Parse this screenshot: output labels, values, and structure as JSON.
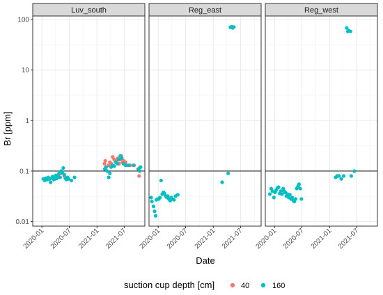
{
  "chart_data": {
    "type": "scatter",
    "ylabel": "Br [ppm]",
    "xlabel": "Date",
    "y_scale": "log10",
    "ylim": [
      0.008,
      140
    ],
    "y_ticks": [
      {
        "value": 0.01,
        "label": "0.01"
      },
      {
        "value": 0.1,
        "label": "0.1"
      },
      {
        "value": 1,
        "label": "1"
      },
      {
        "value": 10,
        "label": "10"
      },
      {
        "value": 100,
        "label": "100"
      }
    ],
    "xlim": [
      "2019-11-01",
      "2021-11-15"
    ],
    "x_ticks": [
      {
        "value": "2020-01-01",
        "label": "2020-01"
      },
      {
        "value": "2020-07-01",
        "label": "2020-07"
      },
      {
        "value": "2021-01-01",
        "label": "2021-01"
      },
      {
        "value": "2021-07-01",
        "label": "2021-07"
      }
    ],
    "reference_line_y": 0.1,
    "grid": true,
    "legend": {
      "title": "suction cup depth [cm]",
      "position": "bottom",
      "entries": [
        {
          "label": "40",
          "color": "#F8766D"
        },
        {
          "label": "160",
          "color": "#00BFC4"
        }
      ]
    },
    "colors": {
      "40": "#F8766D",
      "160": "#00BFC4"
    },
    "panels": [
      {
        "title": "Luv_south",
        "series": [
          {
            "depth": "40",
            "points": [
              [
                "2020-04-05",
                0.075
              ],
              [
                "2020-04-20",
                0.085
              ],
              [
                "2020-05-10",
                0.09
              ],
              [
                "2020-05-28",
                0.08
              ],
              [
                "2021-02-20",
                0.14
              ],
              [
                "2021-02-25",
                0.16
              ],
              [
                "2021-03-05",
                0.12
              ],
              [
                "2021-03-18",
                0.13
              ],
              [
                "2021-03-28",
                0.15
              ],
              [
                "2021-04-05",
                0.14
              ],
              [
                "2021-04-15",
                0.19
              ],
              [
                "2021-04-25",
                0.17
              ],
              [
                "2021-05-05",
                0.15
              ],
              [
                "2021-05-12",
                0.16
              ],
              [
                "2021-05-20",
                0.18
              ],
              [
                "2021-05-28",
                0.14
              ],
              [
                "2021-06-05",
                0.17
              ],
              [
                "2021-06-12",
                0.2
              ],
              [
                "2021-06-20",
                0.15
              ],
              [
                "2021-06-28",
                0.16
              ],
              [
                "2021-07-10",
                0.15
              ],
              [
                "2021-07-25",
                0.13
              ],
              [
                "2021-08-10",
                0.13
              ],
              [
                "2021-09-05",
                0.13
              ],
              [
                "2021-10-01",
                0.11
              ],
              [
                "2021-10-08",
                0.08
              ],
              [
                "2021-10-15",
                0.12
              ]
            ]
          },
          {
            "depth": "160",
            "points": [
              [
                "2020-01-10",
                0.07
              ],
              [
                "2020-01-20",
                0.065
              ],
              [
                "2020-01-28",
                0.072
              ],
              [
                "2020-02-05",
                0.068
              ],
              [
                "2020-02-12",
                0.075
              ],
              [
                "2020-02-20",
                0.07
              ],
              [
                "2020-02-28",
                0.06
              ],
              [
                "2020-03-05",
                0.073
              ],
              [
                "2020-03-12",
                0.078
              ],
              [
                "2020-03-20",
                0.068
              ],
              [
                "2020-03-28",
                0.07
              ],
              [
                "2020-04-03",
                0.082
              ],
              [
                "2020-04-10",
                0.072
              ],
              [
                "2020-04-17",
                0.078
              ],
              [
                "2020-04-24",
                0.09
              ],
              [
                "2020-05-01",
                0.075
              ],
              [
                "2020-05-08",
                0.1
              ],
              [
                "2020-05-15",
                0.095
              ],
              [
                "2020-05-22",
                0.115
              ],
              [
                "2020-05-29",
                0.085
              ],
              [
                "2020-06-05",
                0.072
              ],
              [
                "2020-06-12",
                0.068
              ],
              [
                "2020-06-19",
                0.075
              ],
              [
                "2020-06-26",
                0.07
              ],
              [
                "2020-07-15",
                0.065
              ],
              [
                "2020-08-05",
                0.075
              ],
              [
                "2021-02-22",
                0.11
              ],
              [
                "2021-03-01",
                0.12
              ],
              [
                "2021-03-10",
                0.1
              ],
              [
                "2021-03-20",
                0.075
              ],
              [
                "2021-03-28",
                0.09
              ],
              [
                "2021-04-05",
                0.12
              ],
              [
                "2021-04-15",
                0.13
              ],
              [
                "2021-04-25",
                0.125
              ],
              [
                "2021-05-05",
                0.15
              ],
              [
                "2021-05-15",
                0.14
              ],
              [
                "2021-05-25",
                0.17
              ],
              [
                "2021-06-05",
                0.2
              ],
              [
                "2021-06-15",
                0.18
              ],
              [
                "2021-06-25",
                0.14
              ],
              [
                "2021-07-10",
                0.13
              ],
              [
                "2021-08-01",
                0.13
              ],
              [
                "2021-09-01",
                0.13
              ],
              [
                "2021-10-05",
                0.11
              ],
              [
                "2021-10-12",
                0.1
              ],
              [
                "2021-10-18",
                0.12
              ]
            ]
          }
        ]
      },
      {
        "title": "Reg_east",
        "series": [
          {
            "depth": "40",
            "points": []
          },
          {
            "depth": "160",
            "points": [
              [
                "2019-11-15",
                0.03
              ],
              [
                "2019-11-20",
                0.025
              ],
              [
                "2019-12-01",
                0.02
              ],
              [
                "2019-12-08",
                0.016
              ],
              [
                "2019-12-15",
                0.013
              ],
              [
                "2019-12-20",
                0.027
              ],
              [
                "2019-12-28",
                0.028
              ],
              [
                "2020-01-05",
                0.028
              ],
              [
                "2020-01-12",
                0.03
              ],
              [
                "2020-01-20",
                0.065
              ],
              [
                "2020-01-28",
                0.035
              ],
              [
                "2020-02-05",
                0.038
              ],
              [
                "2020-02-12",
                0.036
              ],
              [
                "2020-02-20",
                0.032
              ],
              [
                "2020-02-28",
                0.03
              ],
              [
                "2020-03-05",
                0.032
              ],
              [
                "2020-03-12",
                0.028
              ],
              [
                "2020-03-20",
                0.026
              ],
              [
                "2020-03-28",
                0.03
              ],
              [
                "2020-04-05",
                0.028
              ],
              [
                "2020-04-15",
                0.027
              ],
              [
                "2020-04-25",
                0.032
              ],
              [
                "2020-05-10",
                0.034
              ],
              [
                "2021-03-01",
                0.06
              ],
              [
                "2021-04-10",
                0.09
              ],
              [
                "2021-04-25",
                70
              ],
              [
                "2021-05-02",
                72
              ],
              [
                "2021-05-10",
                68
              ],
              [
                "2021-05-18",
                71
              ]
            ]
          }
        ]
      },
      {
        "title": "Reg_west",
        "series": [
          {
            "depth": "40",
            "points": []
          },
          {
            "depth": "160",
            "points": [
              [
                "2019-12-01",
                0.035
              ],
              [
                "2019-12-10",
                0.045
              ],
              [
                "2019-12-18",
                0.04
              ],
              [
                "2019-12-28",
                0.03
              ],
              [
                "2020-01-05",
                0.038
              ],
              [
                "2020-01-12",
                0.042
              ],
              [
                "2020-01-20",
                0.046
              ],
              [
                "2020-01-28",
                0.048
              ],
              [
                "2020-02-05",
                0.036
              ],
              [
                "2020-02-12",
                0.04
              ],
              [
                "2020-02-20",
                0.035
              ],
              [
                "2020-02-28",
                0.045
              ],
              [
                "2020-03-05",
                0.04
              ],
              [
                "2020-03-12",
                0.038
              ],
              [
                "2020-03-20",
                0.032
              ],
              [
                "2020-03-28",
                0.035
              ],
              [
                "2020-04-05",
                0.03
              ],
              [
                "2020-04-12",
                0.034
              ],
              [
                "2020-04-20",
                0.028
              ],
              [
                "2020-04-28",
                0.03
              ],
              [
                "2020-05-05",
                0.026
              ],
              [
                "2020-05-12",
                0.025
              ],
              [
                "2020-05-20",
                0.028
              ],
              [
                "2020-05-28",
                0.045
              ],
              [
                "2020-06-05",
                0.05
              ],
              [
                "2020-06-12",
                0.055
              ],
              [
                "2020-06-20",
                0.045
              ],
              [
                "2020-06-28",
                0.028
              ],
              [
                "2021-02-10",
                0.075
              ],
              [
                "2021-02-20",
                0.08
              ],
              [
                "2021-03-05",
                0.08
              ],
              [
                "2021-03-20",
                0.07
              ],
              [
                "2021-04-05",
                0.08
              ],
              [
                "2021-04-25",
                68
              ],
              [
                "2021-05-02",
                58
              ],
              [
                "2021-05-10",
                60
              ],
              [
                "2021-05-20",
                58
              ],
              [
                "2021-05-25",
                0.08
              ],
              [
                "2021-06-15",
                0.1
              ]
            ]
          }
        ]
      }
    ]
  }
}
